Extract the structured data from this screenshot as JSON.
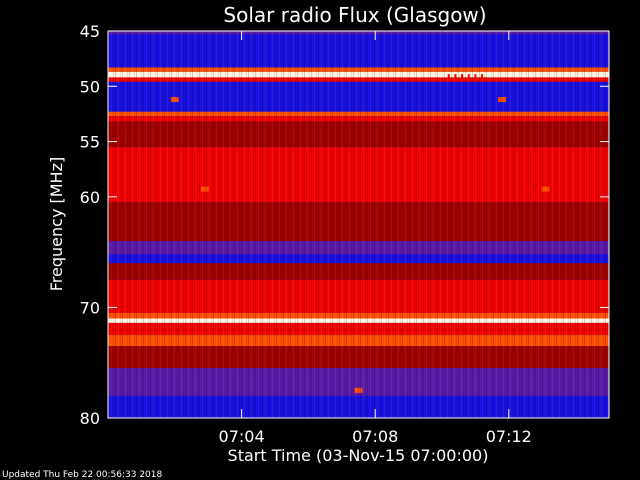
{
  "footer": {
    "updated": "Updated Thu Feb 22 00:56:33 2018"
  },
  "chart_data": {
    "type": "heatmap",
    "title": "Solar radio Flux (Glasgow)",
    "xlabel": "Start Time (03-Nov-15 07:00:00)",
    "ylabel": "Frequency [MHz]",
    "x_range_minutes": [
      0,
      15
    ],
    "x_ticks": [
      {
        "minute": 4,
        "label": "07:04"
      },
      {
        "minute": 8,
        "label": "07:08"
      },
      {
        "minute": 12,
        "label": "07:12"
      }
    ],
    "ylim": [
      45,
      80
    ],
    "y_ticks": [
      45,
      50,
      55,
      60,
      70,
      80
    ],
    "colors": {
      "blue": "#1a10e0",
      "purple": "#5a1aa8",
      "darkred": "#a00000",
      "red": "#f00000",
      "orange": "#ff5000",
      "white": "#fff8e0"
    },
    "bands": [
      {
        "from": 45.0,
        "to": 45.3,
        "level": "purple"
      },
      {
        "from": 45.3,
        "to": 48.3,
        "level": "blue"
      },
      {
        "from": 48.3,
        "to": 48.7,
        "level": "orange"
      },
      {
        "from": 48.7,
        "to": 49.2,
        "level": "white"
      },
      {
        "from": 49.2,
        "to": 49.6,
        "level": "red"
      },
      {
        "from": 49.6,
        "to": 52.3,
        "level": "blue"
      },
      {
        "from": 52.3,
        "to": 52.7,
        "level": "orange"
      },
      {
        "from": 52.7,
        "to": 53.2,
        "level": "red"
      },
      {
        "from": 53.2,
        "to": 55.5,
        "level": "darkred"
      },
      {
        "from": 55.5,
        "to": 60.5,
        "level": "red"
      },
      {
        "from": 60.5,
        "to": 64.0,
        "level": "darkred"
      },
      {
        "from": 64.0,
        "to": 65.2,
        "level": "purple"
      },
      {
        "from": 65.2,
        "to": 66.0,
        "level": "blue"
      },
      {
        "from": 66.0,
        "to": 67.5,
        "level": "darkred"
      },
      {
        "from": 67.5,
        "to": 70.5,
        "level": "red"
      },
      {
        "from": 70.5,
        "to": 71.0,
        "level": "orange"
      },
      {
        "from": 71.0,
        "to": 71.4,
        "level": "white"
      },
      {
        "from": 71.4,
        "to": 72.5,
        "level": "red"
      },
      {
        "from": 72.5,
        "to": 73.5,
        "level": "orange"
      },
      {
        "from": 73.5,
        "to": 75.5,
        "level": "darkred"
      },
      {
        "from": 75.5,
        "to": 78.0,
        "level": "purple"
      },
      {
        "from": 78.0,
        "to": 80.0,
        "level": "blue"
      }
    ],
    "bursts": [
      {
        "minute": 10.2,
        "from": 48.9,
        "to": 49.6,
        "level": "red"
      },
      {
        "minute": 10.4,
        "from": 48.9,
        "to": 49.6,
        "level": "red"
      },
      {
        "minute": 10.6,
        "from": 48.9,
        "to": 49.6,
        "level": "red"
      },
      {
        "minute": 10.8,
        "from": 48.9,
        "to": 49.6,
        "level": "red"
      },
      {
        "minute": 11.0,
        "from": 48.9,
        "to": 49.6,
        "level": "red"
      },
      {
        "minute": 11.2,
        "from": 48.9,
        "to": 49.6,
        "level": "red"
      }
    ],
    "spots": [
      {
        "minute": 2.0,
        "freq": 51.2,
        "level": "orange"
      },
      {
        "minute": 11.8,
        "freq": 51.2,
        "level": "orange"
      },
      {
        "minute": 2.9,
        "freq": 59.3,
        "level": "orange"
      },
      {
        "minute": 13.1,
        "freq": 59.3,
        "level": "orange"
      },
      {
        "minute": 7.5,
        "freq": 77.5,
        "level": "orange"
      }
    ]
  }
}
